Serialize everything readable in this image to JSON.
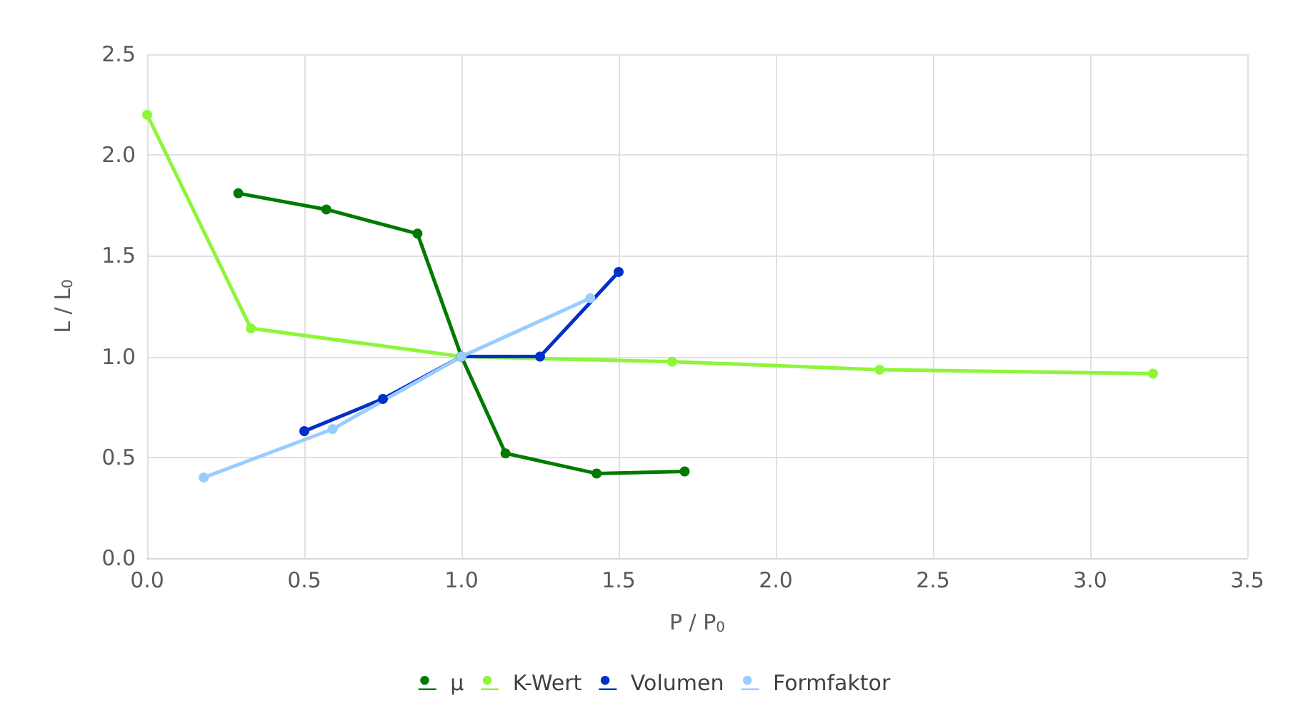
{
  "chart_data": {
    "type": "line",
    "xlabel": "P / P$_{0}$",
    "ylabel": "L / L$_{0}$",
    "xlim": [
      0,
      3.5
    ],
    "xticks": [
      {
        "value": 0,
        "label": "0.0"
      },
      {
        "value": 0.5,
        "label": "0.5"
      },
      {
        "value": 1,
        "label": "1.0"
      },
      {
        "value": 1.5,
        "label": "1.5"
      },
      {
        "value": 2,
        "label": "2.0"
      },
      {
        "value": 2.5,
        "label": "2.5"
      },
      {
        "value": 3,
        "label": "3.0"
      },
      {
        "value": 3.5,
        "label": "3.5"
      }
    ],
    "ylim": [
      0,
      2.5
    ],
    "yticks": [
      {
        "value": 0,
        "label": "0.0"
      },
      {
        "value": 0.5,
        "label": "0.5"
      },
      {
        "value": 1,
        "label": "1.0"
      },
      {
        "value": 1.5,
        "label": "1.5"
      },
      {
        "value": 2,
        "label": "2.0"
      },
      {
        "value": 2.5,
        "label": "2.5"
      }
    ],
    "grid": true,
    "legend": "bottom",
    "marker": "circle",
    "line_style": "solid",
    "series": [
      {
        "name": "μ",
        "color": "#007a00",
        "x": [
          0.29,
          0.57,
          0.86,
          1,
          1.14,
          1.43,
          1.71
        ],
        "values": [
          1.81,
          1.73,
          1.61,
          1.0,
          0.52,
          0.42,
          0.43
        ]
      },
      {
        "name": "K-Wert",
        "color": "#8ef53a",
        "x": [
          0,
          0.33,
          1,
          1.67,
          2.33,
          3.2
        ],
        "values": [
          2.2,
          1.14,
          1.0,
          0.975,
          0.935,
          0.915
        ]
      },
      {
        "name": "Volumen",
        "color": "#0030c8",
        "x": [
          0.5,
          0.75,
          1,
          1.25,
          1.5
        ],
        "values": [
          0.63,
          0.79,
          1.0,
          1.0,
          1.42
        ]
      },
      {
        "name": "Formfaktor",
        "color": "#99ccff",
        "x": [
          0.18,
          0.59,
          1,
          1.41
        ],
        "values": [
          0.4,
          0.64,
          1.0,
          1.29
        ]
      }
    ]
  }
}
